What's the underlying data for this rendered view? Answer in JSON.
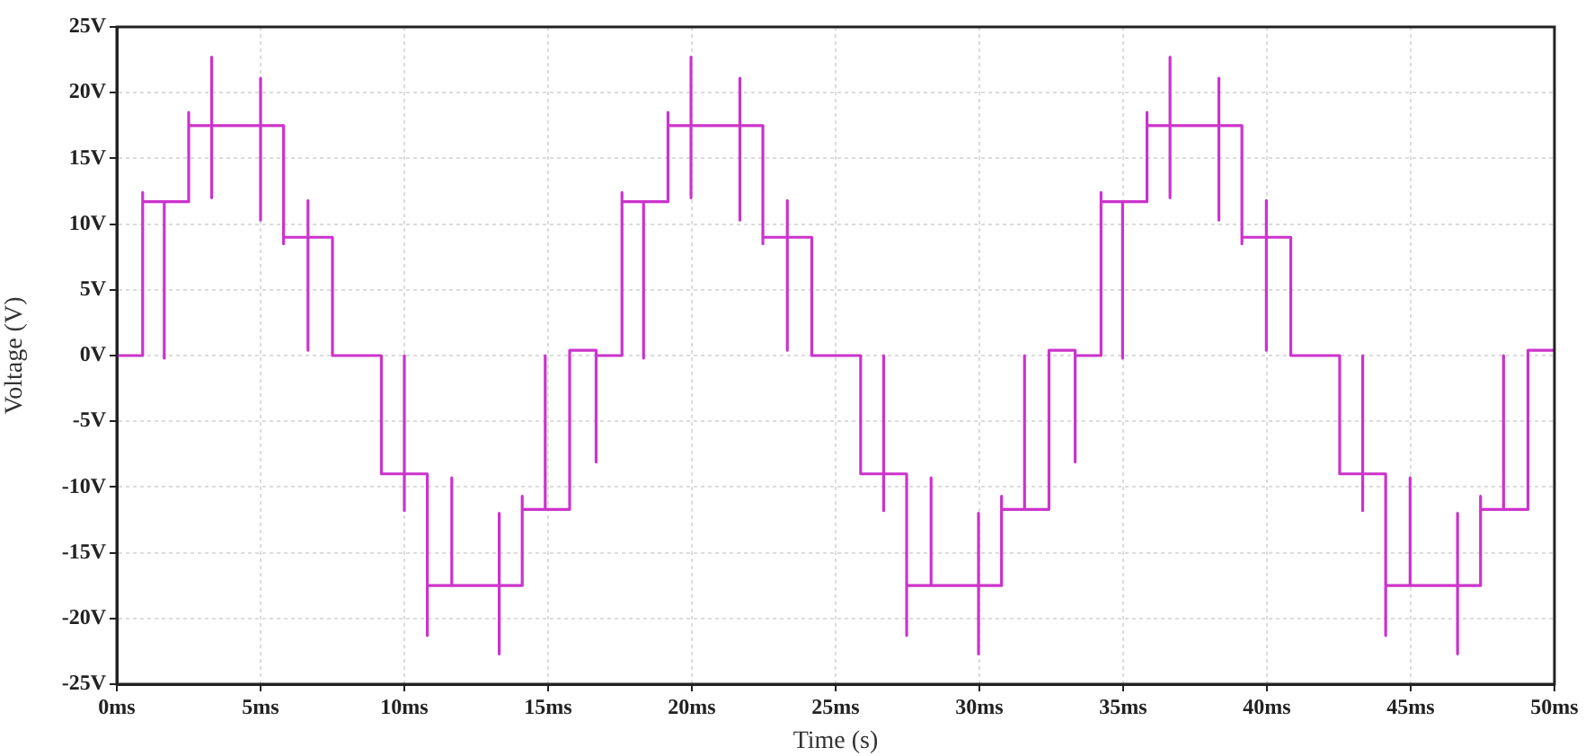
{
  "chart_data": {
    "type": "line",
    "xlabel": "Time (s)",
    "ylabel": "Voltage (V)",
    "xlim": [
      0,
      50
    ],
    "xticks": [
      {
        "value": 0,
        "label": "0ms"
      },
      {
        "value": 5,
        "label": "5ms"
      },
      {
        "value": 10,
        "label": "10ms"
      },
      {
        "value": 15,
        "label": "15ms"
      },
      {
        "value": 20,
        "label": "20ms"
      },
      {
        "value": 25,
        "label": "25ms"
      },
      {
        "value": 30,
        "label": "30ms"
      },
      {
        "value": 35,
        "label": "35ms"
      },
      {
        "value": 40,
        "label": "40ms"
      },
      {
        "value": 45,
        "label": "45ms"
      },
      {
        "value": 50,
        "label": "50ms"
      }
    ],
    "ylim": [
      -25,
      25
    ],
    "yticks": [
      {
        "value": -25,
        "label": "-25V"
      },
      {
        "value": -20,
        "label": "-20V"
      },
      {
        "value": -15,
        "label": "-15V"
      },
      {
        "value": -10,
        "label": "-10V"
      },
      {
        "value": -5,
        "label": "-5V"
      },
      {
        "value": 0,
        "label": "0V"
      },
      {
        "value": 5,
        "label": "5V"
      },
      {
        "value": 10,
        "label": "10V"
      },
      {
        "value": 15,
        "label": "15V"
      },
      {
        "value": 20,
        "label": "20V"
      },
      {
        "value": 25,
        "label": "25V"
      }
    ],
    "grid": true,
    "legend": false,
    "marker": "none",
    "line_style": "solid",
    "series": [
      {
        "color": "#cc33cc",
        "x": [
          0,
          0.9,
          0.9,
          0.9,
          1.65,
          1.65,
          1.65,
          2.5,
          2.5,
          2.5,
          3.3,
          3.3,
          3.3,
          3.3,
          5,
          5,
          5,
          5,
          5.8,
          5.8,
          5.8,
          6.65,
          6.65,
          6.65,
          6.65,
          7.5,
          7.5,
          9.2,
          9.2,
          10,
          10,
          10,
          10,
          10.8,
          10.8,
          10.8,
          11.65,
          11.65,
          11.65,
          13.3,
          13.3,
          13.3,
          13.3,
          14.1,
          14.1,
          14.1,
          14.9,
          14.9,
          14.9,
          15.75,
          15.75,
          16.67,
          16.67,
          16.67,
          17.57,
          17.57,
          17.57,
          18.32,
          18.32,
          18.32,
          19.17,
          19.17,
          19.17,
          19.97,
          19.97,
          19.97,
          19.97,
          21.67,
          21.67,
          21.67,
          21.67,
          22.47,
          22.47,
          22.47,
          23.32,
          23.32,
          23.32,
          23.32,
          24.17,
          24.17,
          25.87,
          25.87,
          26.67,
          26.67,
          26.67,
          26.67,
          27.47,
          27.47,
          27.47,
          28.32,
          28.32,
          28.32,
          29.97,
          29.97,
          29.97,
          29.97,
          30.77,
          30.77,
          30.77,
          31.57,
          31.57,
          31.57,
          32.42,
          32.42,
          33.33,
          33.33,
          33.33,
          34.23,
          34.23,
          34.23,
          34.98,
          34.98,
          34.98,
          35.83,
          35.83,
          35.83,
          36.63,
          36.63,
          36.63,
          36.63,
          38.33,
          38.33,
          38.33,
          38.33,
          39.13,
          39.13,
          39.13,
          39.98,
          39.98,
          39.98,
          39.98,
          40.83,
          40.83,
          42.53,
          42.53,
          43.33,
          43.33,
          43.33,
          43.33,
          44.13,
          44.13,
          44.13,
          44.98,
          44.98,
          44.98,
          46.63,
          46.63,
          46.63,
          46.63,
          47.43,
          47.43,
          47.43,
          48.23,
          48.23,
          48.23,
          49.08,
          49.08,
          50
        ],
        "values": [
          0,
          0,
          12.4,
          11.7,
          11.7,
          -0.2,
          11.7,
          11.7,
          18.5,
          17.5,
          17.5,
          22.7,
          12,
          17.5,
          17.5,
          21.1,
          10.3,
          17.5,
          17.5,
          8.5,
          9,
          9,
          11.8,
          0.4,
          9,
          9,
          0,
          0,
          -9,
          -9,
          0,
          -11.8,
          -9,
          -9,
          -21.3,
          -17.5,
          -17.5,
          -9.3,
          -17.5,
          -17.5,
          -12,
          -22.7,
          -17.5,
          -17.5,
          -10.7,
          -11.7,
          -11.7,
          0,
          -11.7,
          -11.7,
          0.4,
          0.4,
          -8.1,
          0,
          0,
          12.4,
          11.7,
          11.7,
          -0.2,
          11.7,
          11.7,
          18.5,
          17.5,
          17.5,
          22.7,
          12,
          17.5,
          17.5,
          21.1,
          10.3,
          17.5,
          17.5,
          8.5,
          9,
          9,
          11.8,
          0.4,
          9,
          9,
          0,
          0,
          -9,
          -9,
          0,
          -11.8,
          -9,
          -9,
          -21.3,
          -17.5,
          -17.5,
          -9.3,
          -17.5,
          -17.5,
          -12,
          -22.7,
          -17.5,
          -17.5,
          -10.7,
          -11.7,
          -11.7,
          0,
          -11.7,
          -11.7,
          0.4,
          0.4,
          -8.1,
          0,
          0,
          12.4,
          11.7,
          11.7,
          -0.2,
          11.7,
          11.7,
          18.5,
          17.5,
          17.5,
          22.7,
          12,
          17.5,
          17.5,
          21.1,
          10.3,
          17.5,
          17.5,
          8.5,
          9,
          9,
          11.8,
          0.4,
          9,
          9,
          0,
          0,
          -9,
          -9,
          0,
          -11.8,
          -9,
          -9,
          -21.3,
          -17.5,
          -17.5,
          -9.3,
          -17.5,
          -17.5,
          -12,
          -22.7,
          -17.5,
          -17.5,
          -10.7,
          -11.7,
          -11.7,
          0,
          -11.7,
          -11.7,
          0.4,
          0.4
        ]
      }
    ]
  }
}
